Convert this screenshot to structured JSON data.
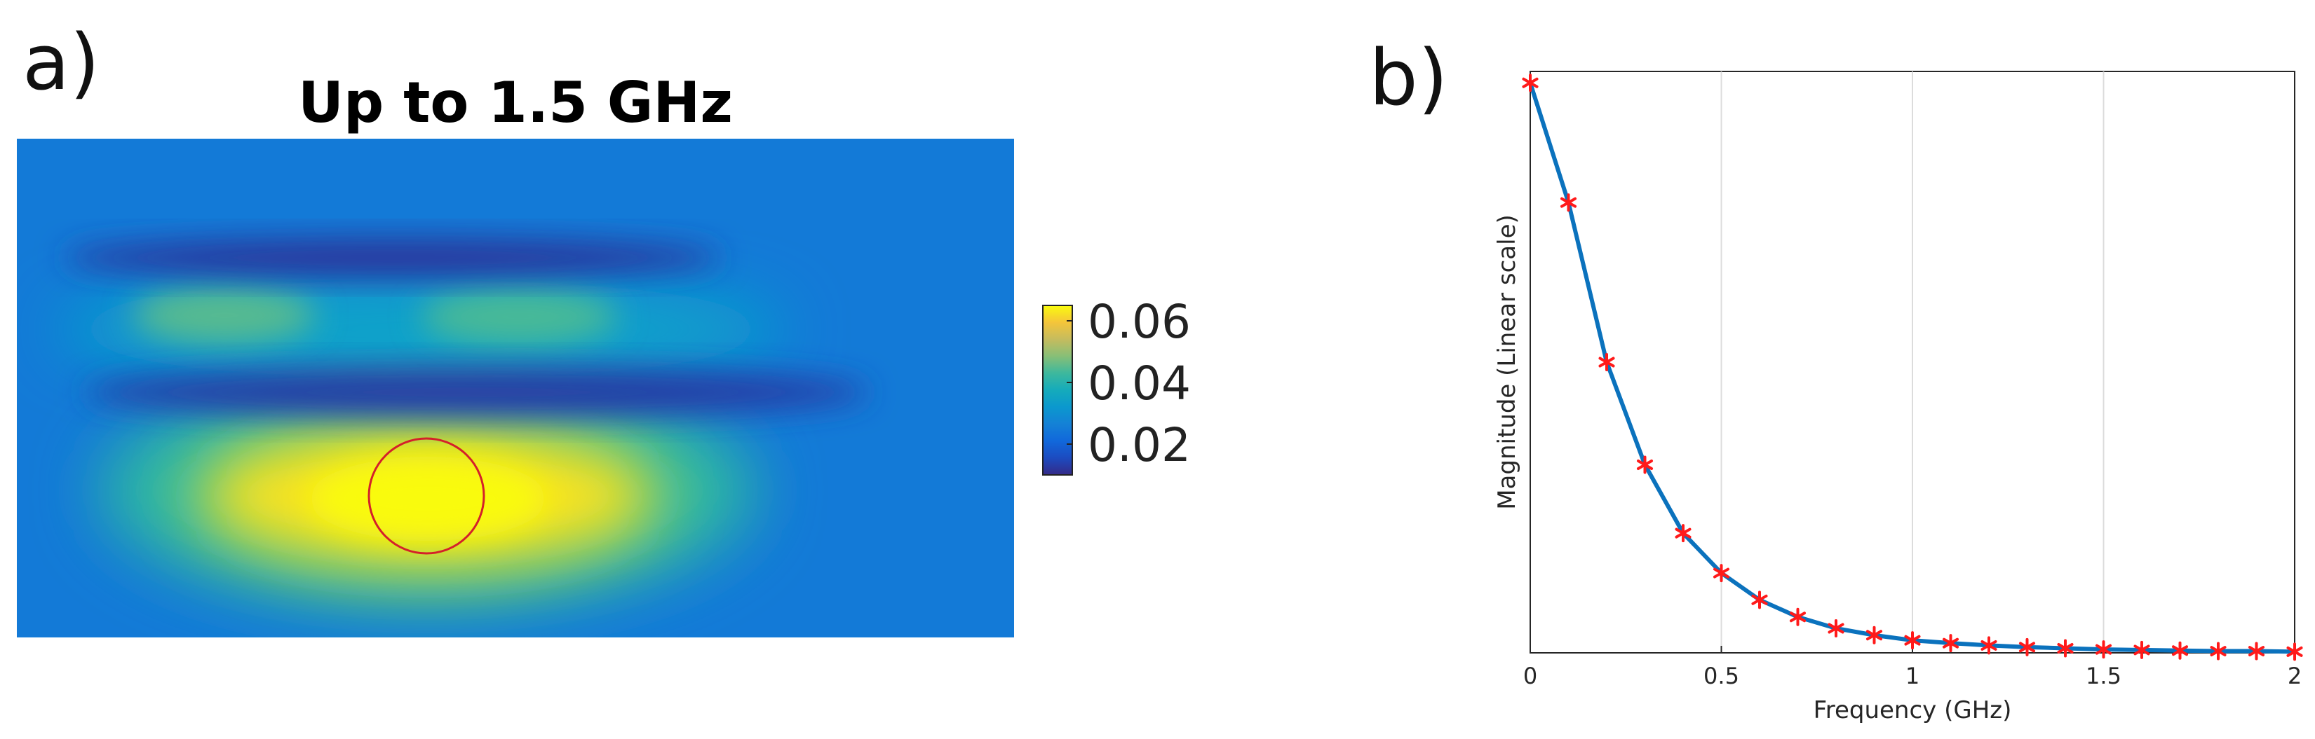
{
  "panels": {
    "a_label": "a)",
    "b_label": "b)"
  },
  "chart_data": [
    {
      "type": "heatmap",
      "title": "Up to 1.5 GHz",
      "colormap": "parula",
      "colorbar": {
        "ticks": [
          0.06,
          0.04,
          0.02
        ],
        "tick_labels": [
          "0.06",
          "0.04",
          "0.02"
        ],
        "range": [
          0.01,
          0.065
        ]
      },
      "blobs": [
        {
          "kind": "hot-spot",
          "value": 0.063
        },
        {
          "kind": "warm-patch",
          "value": 0.045
        },
        {
          "kind": "warm-patch",
          "value": 0.044
        },
        {
          "kind": "cold-band",
          "value": 0.012
        },
        {
          "kind": "cold-band",
          "value": 0.013
        }
      ],
      "background_value": 0.025,
      "marker": {
        "shape": "circle",
        "color": "#d4202a"
      }
    },
    {
      "type": "line",
      "xlabel": "Frequency (GHz)",
      "ylabel": "Magnitude (Linear scale)",
      "xlim": [
        0,
        2
      ],
      "ylim": [
        0,
        1.02
      ],
      "xticks": [
        0,
        0.5,
        1,
        1.5,
        2
      ],
      "xtick_labels": [
        "0",
        "0.5",
        "1",
        "1.5",
        "2"
      ],
      "yticks_shown": false,
      "grid": "vertical",
      "line_color": "#0b72bd",
      "marker_color": "#ff1a1a",
      "marker": "asterisk",
      "x": [
        0,
        0.1,
        0.2,
        0.3,
        0.4,
        0.5,
        0.6,
        0.7,
        0.8,
        0.9,
        1.0,
        1.1,
        1.2,
        1.3,
        1.4,
        1.5,
        1.6,
        1.7,
        1.8,
        1.9,
        2.0
      ],
      "y": [
        1.0,
        0.79,
        0.51,
        0.33,
        0.21,
        0.14,
        0.093,
        0.063,
        0.043,
        0.031,
        0.022,
        0.017,
        0.013,
        0.01,
        0.008,
        0.006,
        0.005,
        0.004,
        0.003,
        0.003,
        0.002
      ]
    }
  ]
}
